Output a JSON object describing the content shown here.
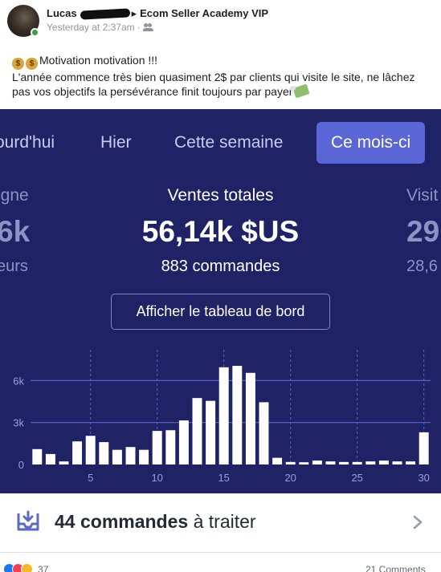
{
  "post": {
    "author_first": "Lucas",
    "group": "Ecom Seller Academy VIP",
    "timestamp": "Yesterday at 2:37am",
    "privacy_icon": "people-icon",
    "text_line1": "Motivation motivation !!!",
    "text_line2": "L'année commence très bien quasiment 2$ par clients qui visite le site, ne lâchez pas vos objectifs la persévérance finit toujours par payer",
    "emoji_prefix": "money-bag-icon",
    "emoji_suffix": "money-with-wings-icon"
  },
  "panel": {
    "tabs": [
      {
        "label": "ourd'hui"
      },
      {
        "label": "Hier"
      },
      {
        "label": "Cette semaine"
      },
      {
        "label": "Ce mois-ci",
        "active": true
      }
    ],
    "left_stat": {
      "label": "igne",
      "value": "6k",
      "sub": "eurs"
    },
    "center_stat": {
      "label": "Ventes totales",
      "value": "56,14k $US",
      "sub": "883 commandes"
    },
    "right_stat": {
      "label": "Visit",
      "value": "29",
      "sub": "28,6"
    },
    "dashboard_button": "Afficher le tableau de bord"
  },
  "chart_data": {
    "type": "bar",
    "x": [
      1,
      2,
      3,
      4,
      5,
      6,
      7,
      8,
      9,
      10,
      11,
      12,
      13,
      14,
      15,
      16,
      17,
      18,
      19,
      20,
      21,
      22,
      23,
      24,
      25,
      26,
      27,
      28,
      29,
      30
    ],
    "values": [
      1100,
      750,
      220,
      1650,
      2050,
      1600,
      1050,
      1250,
      1050,
      2400,
      2450,
      3150,
      4750,
      4550,
      6950,
      7050,
      6550,
      4450,
      480,
      180,
      160,
      280,
      220,
      180,
      180,
      220,
      280,
      220,
      220,
      2300
    ],
    "x_ticks": [
      "5",
      "10",
      "15",
      "20",
      "25",
      "30"
    ],
    "x_tick_values": [
      5,
      10,
      15,
      20,
      25,
      30
    ],
    "y_ticks": [
      "0",
      "3k",
      "6k"
    ],
    "y_tick_values": [
      0,
      3000,
      6000
    ],
    "ylim": [
      0,
      8200
    ],
    "grid": true,
    "bar_color": "#ffffff",
    "grid_color": "#5b62c8"
  },
  "orders": {
    "count_bold": "44 commandes",
    "rest": " à traiter",
    "icon": "inbox-icon",
    "chevron": "chevron-right-icon"
  },
  "footer": {
    "reaction_count": "37",
    "comments": "21 Comments"
  },
  "colors": {
    "panel_bg": "#1f2366",
    "active_tab": "#5b66d6",
    "orders_icon": "#5c6ac4"
  }
}
